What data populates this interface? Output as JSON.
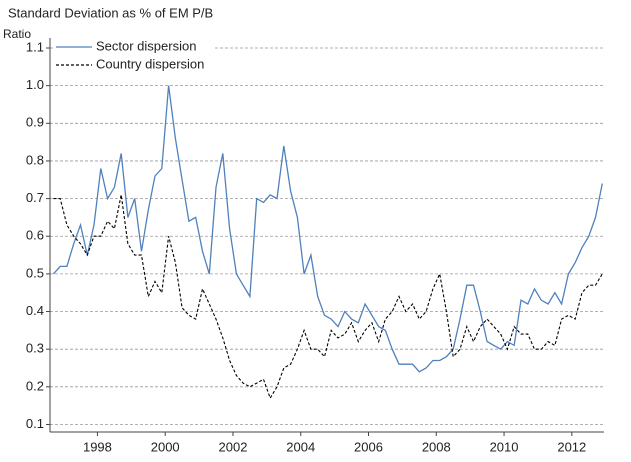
{
  "chart_data": {
    "type": "line",
    "title": "Standard Deviation as % of EM P/B",
    "ylabel": "Ratio",
    "x": [
      1996.7,
      1996.9,
      1997.1,
      1997.3,
      1997.5,
      1997.7,
      1997.9,
      1998.1,
      1998.3,
      1998.5,
      1998.7,
      1998.9,
      1999.1,
      1999.3,
      1999.5,
      1999.7,
      1999.9,
      2000.1,
      2000.3,
      2000.5,
      2000.7,
      2000.9,
      2001.1,
      2001.3,
      2001.5,
      2001.7,
      2001.9,
      2002.1,
      2002.3,
      2002.5,
      2002.7,
      2002.9,
      2003.1,
      2003.3,
      2003.5,
      2003.7,
      2003.9,
      2004.1,
      2004.3,
      2004.5,
      2004.7,
      2004.9,
      2005.1,
      2005.3,
      2005.5,
      2005.7,
      2005.9,
      2006.1,
      2006.3,
      2006.5,
      2006.7,
      2006.9,
      2007.1,
      2007.3,
      2007.5,
      2007.7,
      2007.9,
      2008.1,
      2008.3,
      2008.5,
      2008.7,
      2008.9,
      2009.1,
      2009.3,
      2009.5,
      2009.7,
      2009.9,
      2010.1,
      2010.3,
      2010.5,
      2010.7,
      2010.9,
      2011.1,
      2011.3,
      2011.5,
      2011.7,
      2011.9,
      2012.1,
      2012.3,
      2012.5,
      2012.7,
      2012.9
    ],
    "series": [
      {
        "name": "Sector dispersion",
        "color": "#4f81bd",
        "dash": "solid",
        "values": [
          0.5,
          0.52,
          0.52,
          0.58,
          0.63,
          0.55,
          0.63,
          0.78,
          0.7,
          0.73,
          0.82,
          0.65,
          0.7,
          0.56,
          0.67,
          0.76,
          0.78,
          1.0,
          0.86,
          0.75,
          0.64,
          0.65,
          0.56,
          0.5,
          0.73,
          0.82,
          0.62,
          0.5,
          0.47,
          0.44,
          0.7,
          0.69,
          0.71,
          0.7,
          0.84,
          0.72,
          0.65,
          0.5,
          0.55,
          0.44,
          0.39,
          0.38,
          0.36,
          0.4,
          0.38,
          0.37,
          0.42,
          0.39,
          0.36,
          0.35,
          0.3,
          0.26,
          0.26,
          0.26,
          0.24,
          0.25,
          0.27,
          0.27,
          0.28,
          0.3,
          0.38,
          0.47,
          0.47,
          0.4,
          0.32,
          0.31,
          0.3,
          0.32,
          0.31,
          0.43,
          0.42,
          0.46,
          0.43,
          0.42,
          0.45,
          0.42,
          0.5,
          0.53,
          0.57,
          0.6,
          0.65,
          0.74
        ]
      },
      {
        "name": "Country dispersion",
        "color": "#000000",
        "dash": "dashed",
        "values": [
          0.7,
          0.7,
          0.63,
          0.6,
          0.58,
          0.55,
          0.6,
          0.6,
          0.64,
          0.62,
          0.71,
          0.58,
          0.55,
          0.55,
          0.44,
          0.48,
          0.45,
          0.6,
          0.53,
          0.41,
          0.39,
          0.38,
          0.46,
          0.42,
          0.38,
          0.33,
          0.27,
          0.23,
          0.21,
          0.2,
          0.21,
          0.22,
          0.17,
          0.2,
          0.25,
          0.26,
          0.3,
          0.35,
          0.3,
          0.3,
          0.28,
          0.35,
          0.33,
          0.34,
          0.37,
          0.32,
          0.35,
          0.37,
          0.32,
          0.38,
          0.4,
          0.44,
          0.4,
          0.42,
          0.38,
          0.4,
          0.46,
          0.5,
          0.4,
          0.28,
          0.3,
          0.36,
          0.32,
          0.36,
          0.38,
          0.36,
          0.34,
          0.3,
          0.36,
          0.34,
          0.34,
          0.3,
          0.3,
          0.32,
          0.31,
          0.38,
          0.39,
          0.38,
          0.45,
          0.47,
          0.47,
          0.5
        ]
      }
    ],
    "xlim": [
      1996.6,
      2012.95
    ],
    "xticks": [
      1998,
      2000,
      2002,
      2004,
      2006,
      2008,
      2010,
      2012
    ],
    "ylim": [
      0.08,
      1.1
    ],
    "yticks": [
      0.1,
      0.2,
      0.3,
      0.4,
      0.5,
      0.6,
      0.7,
      0.8,
      0.9,
      {
        "value": 1,
        "label": "1.0"
      },
      1.1
    ],
    "grid": true,
    "legend": "upper left"
  }
}
